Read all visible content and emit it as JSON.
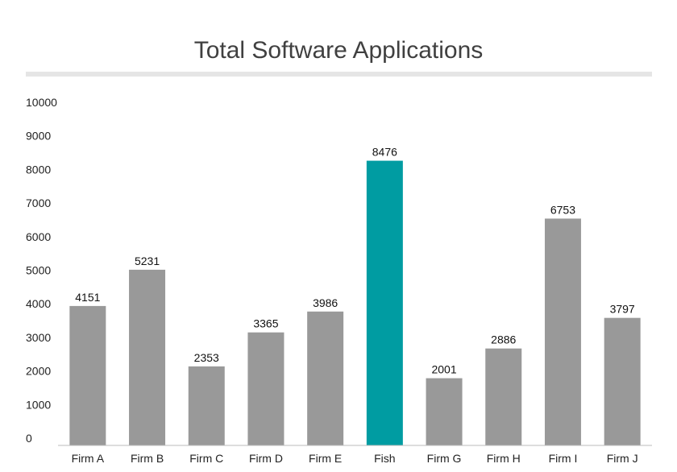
{
  "chart_data": {
    "type": "bar",
    "title": "Total Software Applications",
    "xlabel": "",
    "ylabel": "",
    "ylim": [
      0,
      10000
    ],
    "yticks": [
      0,
      1000,
      2000,
      3000,
      4000,
      5000,
      6000,
      7000,
      8000,
      9000,
      10000
    ],
    "categories": [
      "Firm A",
      "Firm B",
      "Firm C",
      "Firm D",
      "Firm E",
      "Fish",
      "Firm G",
      "Firm H",
      "Firm I",
      "Firm J"
    ],
    "values": [
      4151,
      5231,
      2353,
      3365,
      3986,
      8476,
      2001,
      2886,
      6753,
      3797
    ],
    "highlight_category": "Fish",
    "grid": false,
    "legend": "none",
    "colors": {
      "bar": "#999999",
      "highlight": "#009ca2",
      "title_rule": "#e5e5e5",
      "axis": "#bbbbbb"
    }
  }
}
